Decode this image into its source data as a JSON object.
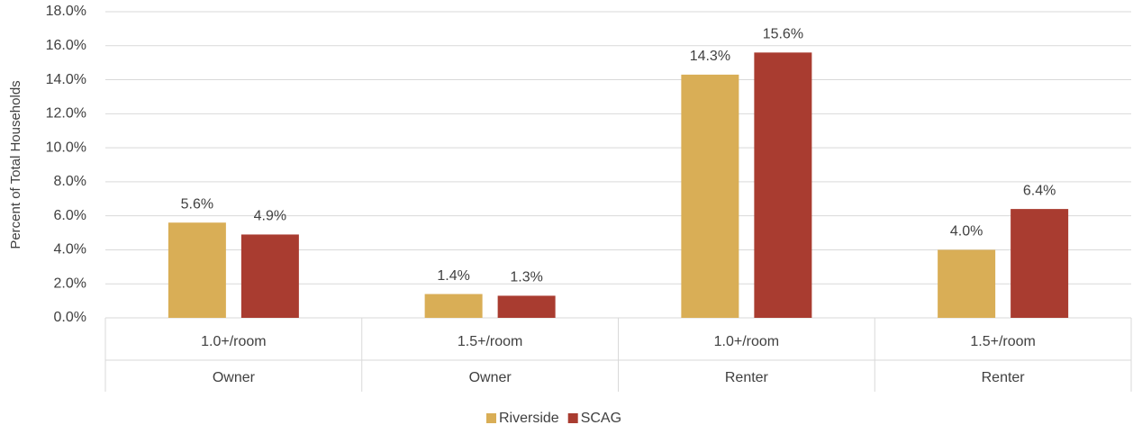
{
  "chart_data": {
    "type": "bar",
    "y_axis_label": "Percent of Total Households",
    "categories": [
      "1.0+/room",
      "1.5+/room",
      "1.0+/room",
      "1.5+/room"
    ],
    "category_groups": [
      "Owner",
      "Owner",
      "Renter",
      "Renter"
    ],
    "series": [
      {
        "name": "Riverside",
        "color": "#d9ae56",
        "values": [
          5.6,
          1.4,
          14.3,
          4.0
        ],
        "value_labels": [
          "5.6%",
          "1.4%",
          "14.3%",
          "4.0%"
        ]
      },
      {
        "name": "SCAG",
        "color": "#a93c30",
        "values": [
          4.9,
          1.3,
          15.6,
          6.4
        ],
        "value_labels": [
          "4.9%",
          "1.3%",
          "15.6%",
          "6.4%"
        ]
      }
    ],
    "ylim": [
      0,
      18
    ],
    "yticks": [
      {
        "value": 0,
        "label": "0.0%"
      },
      {
        "value": 2,
        "label": "2.0%"
      },
      {
        "value": 4,
        "label": "4.0%"
      },
      {
        "value": 6,
        "label": "6.0%"
      },
      {
        "value": 8,
        "label": "8.0%"
      },
      {
        "value": 10,
        "label": "10.0%"
      },
      {
        "value": 12,
        "label": "12.0%"
      },
      {
        "value": 14,
        "label": "14.0%"
      },
      {
        "value": 16,
        "label": "16.0%"
      },
      {
        "value": 18,
        "label": "18.0%"
      }
    ],
    "grid": true,
    "legend": "bottom"
  }
}
